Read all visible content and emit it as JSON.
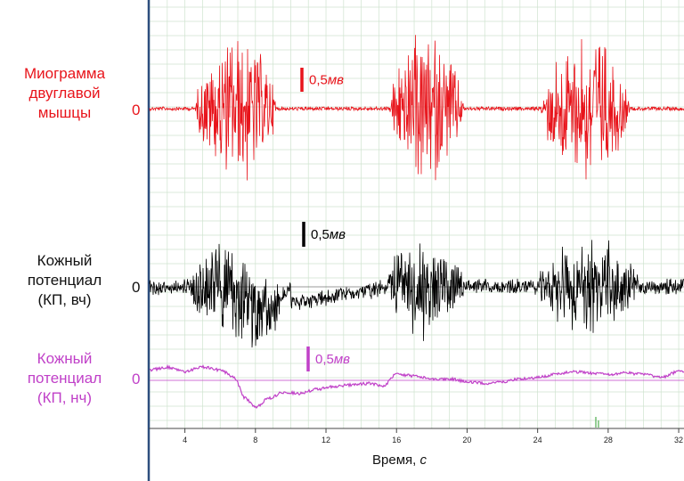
{
  "chart_data": {
    "type": "line",
    "xlabel": "Время,",
    "xlabel_unit": "с",
    "xlim": [
      2,
      32.3
    ],
    "xticks": [
      4,
      8,
      12,
      16,
      20,
      24,
      28,
      32
    ],
    "grid": true,
    "series": [
      {
        "key": "emg",
        "label_lines": [
          "Миограмма",
          "двуглавой",
          "мышцы"
        ],
        "zero_label": "0",
        "scale_label": "0,5",
        "scale_unit": "мв",
        "color": "#e8141b",
        "bursts": [
          [
            4.6,
            9.2
          ],
          [
            15.6,
            19.8
          ],
          [
            24.2,
            29.2
          ]
        ]
      },
      {
        "key": "kp_hf",
        "label_lines": [
          "Кожный",
          "потенциал",
          "(КП, вч)"
        ],
        "zero_label": "0",
        "scale_label": "0,5",
        "scale_unit": "мв",
        "color": "#000000",
        "bursts": [
          [
            4.3,
            9.6
          ],
          [
            15.4,
            19.8
          ],
          [
            24.0,
            29.8
          ]
        ]
      },
      {
        "key": "kp_lf",
        "label_lines": [
          "Кожный",
          "потенциал",
          "(КП, нч)"
        ],
        "zero_label": "0",
        "scale_label": "0,5",
        "scale_unit": "мв",
        "color": "#c040c8",
        "points": [
          [
            2,
            0.35
          ],
          [
            3,
            0.45
          ],
          [
            4,
            0.3
          ],
          [
            5,
            0.45
          ],
          [
            6,
            0.35
          ],
          [
            6.8,
            0.1
          ],
          [
            7.4,
            -0.6
          ],
          [
            8,
            -0.9
          ],
          [
            8.8,
            -0.6
          ],
          [
            9.6,
            -0.4
          ],
          [
            10.5,
            -0.45
          ],
          [
            11.5,
            -0.3
          ],
          [
            12.5,
            -0.2
          ],
          [
            13.5,
            -0.15
          ],
          [
            14.5,
            -0.1
          ],
          [
            15.2,
            -0.2
          ],
          [
            16,
            0.2
          ],
          [
            17,
            0.15
          ],
          [
            18,
            0.05
          ],
          [
            19,
            0.05
          ],
          [
            20,
            -0.05
          ],
          [
            21,
            -0.1
          ],
          [
            22,
            -0.05
          ],
          [
            23,
            0.05
          ],
          [
            24,
            0.1
          ],
          [
            25,
            0.2
          ],
          [
            26,
            0.3
          ],
          [
            27,
            0.25
          ],
          [
            28,
            0.2
          ],
          [
            29,
            0.25
          ],
          [
            30,
            0.2
          ],
          [
            31,
            0.1
          ],
          [
            32,
            0.3
          ]
        ]
      }
    ]
  }
}
